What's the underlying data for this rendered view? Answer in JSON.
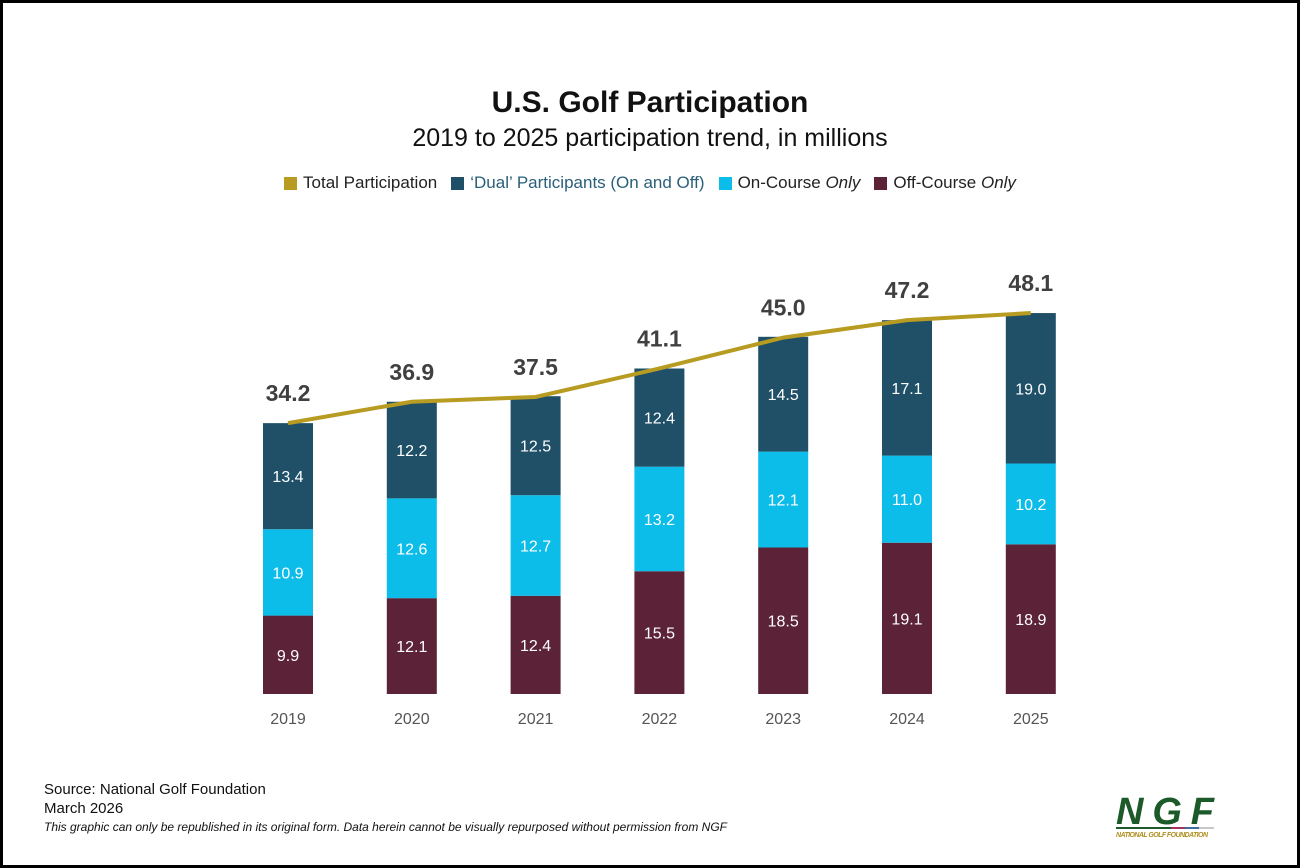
{
  "title": "U.S. Golf Participation",
  "subtitle": "2019 to 2025 participation trend, in millions",
  "legend": [
    {
      "label": "Total Participation",
      "color": "#b89b21"
    },
    {
      "label": "‘Dual’ Participants (On and Off)",
      "color": "#1f5068"
    },
    {
      "label": "On-Course ",
      "italic": "Only",
      "color": "#0dbde9"
    },
    {
      "label": "Off-Course ",
      "italic": "Only",
      "color": "#5c2237"
    }
  ],
  "chart_data": {
    "type": "bar",
    "stacked": true,
    "categories": [
      "2019",
      "2020",
      "2021",
      "2022",
      "2023",
      "2024",
      "2025"
    ],
    "series": [
      {
        "name": "Off-Course Only",
        "color": "#5c2237",
        "values": [
          9.9,
          12.1,
          12.4,
          15.5,
          18.5,
          19.1,
          18.9
        ]
      },
      {
        "name": "On-Course Only",
        "color": "#0dbde9",
        "values": [
          10.9,
          12.6,
          12.7,
          13.2,
          12.1,
          11.0,
          10.2
        ]
      },
      {
        "name": "'Dual' Participants (On and Off)",
        "color": "#1f5068",
        "values": [
          13.4,
          12.2,
          12.5,
          12.4,
          14.5,
          17.1,
          19.0
        ]
      }
    ],
    "line": {
      "name": "Total Participation",
      "color": "#b89b21",
      "values": [
        34.2,
        36.9,
        37.5,
        41.1,
        45.0,
        47.2,
        48.1
      ]
    },
    "value_labels": [
      "34.2",
      "36.9",
      "37.5",
      "41.1",
      "45.0",
      "47.2",
      "48.1"
    ],
    "ylim": [
      0,
      50
    ],
    "grid": false,
    "legend_position": "top"
  },
  "footer": {
    "source": "Source: National Golf Foundation",
    "date": "March 2026",
    "note": "This graphic can only be republished in its original form. Data herein cannot be visually repurposed without permission from NGF"
  },
  "logo": {
    "mark": "NGF",
    "name": "NATIONAL GOLF FOUNDATION"
  }
}
